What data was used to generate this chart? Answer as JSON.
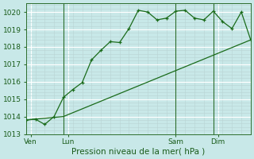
{
  "line1_x": [
    0,
    1,
    2,
    3,
    4,
    5,
    6,
    7,
    8,
    9,
    10,
    11,
    12,
    13,
    14,
    15,
    16,
    17,
    18,
    19,
    20,
    21,
    22,
    23,
    24
  ],
  "line1_y": [
    1013.8,
    1013.85,
    1013.55,
    1014.0,
    1015.1,
    1015.55,
    1015.95,
    1017.25,
    1017.8,
    1018.3,
    1018.25,
    1019.05,
    1020.1,
    1020.0,
    1019.55,
    1019.65,
    1020.05,
    1020.1,
    1019.65,
    1019.55,
    1020.05,
    1019.45,
    1019.05,
    1020.0,
    1018.4
  ],
  "line2_x": [
    0,
    4,
    24
  ],
  "line2_y": [
    1013.8,
    1014.0,
    1018.4
  ],
  "line_color": "#1a6b1a",
  "bg_color": "#c8e8e8",
  "grid_major_color": "#ffffff",
  "grid_minor_color": "#b8d4d4",
  "tick_label_color": "#1a5c1a",
  "xlabel": "Pression niveau de la mer( hPa )",
  "ylim": [
    1013.0,
    1020.5
  ],
  "yticks": [
    1013,
    1014,
    1015,
    1016,
    1017,
    1018,
    1019,
    1020
  ],
  "xlim": [
    0,
    24
  ],
  "xtick_positions": [
    0.5,
    4.5,
    16,
    20.5
  ],
  "xtick_labels": [
    "Ven",
    "Lun",
    "Sam",
    "Dim"
  ],
  "vlines_x": [
    4,
    16,
    20
  ],
  "tick_fontsize": 6.5,
  "xlabel_fontsize": 7.5
}
